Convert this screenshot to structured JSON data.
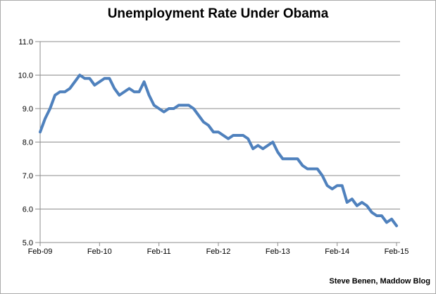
{
  "title": "Unemployment Rate Under Obama",
  "attribution": "Steve Benen, Maddow Blog",
  "colors": {
    "line": "#4F81BD",
    "gridline": "#8C8C8C",
    "axis": "#8C8C8C",
    "text": "#000000",
    "frame_border": "#ABABAB",
    "background": "#FFFFFF"
  },
  "chart_data": {
    "type": "line",
    "title": "Unemployment Rate Under Obama",
    "xlabel": "",
    "ylabel": "",
    "ylim": [
      5.0,
      11.0
    ],
    "y_tick_step": 1.0,
    "y_tick_labels": [
      "5.0",
      "6.0",
      "7.0",
      "8.0",
      "9.0",
      "10.0",
      "11.0"
    ],
    "x_tick_labels": [
      "Feb-09",
      "Feb-10",
      "Feb-11",
      "Feb-12",
      "Feb-13",
      "Feb-14",
      "Feb-15"
    ],
    "x_tick_month_indices": [
      0,
      12,
      24,
      36,
      48,
      60,
      72
    ],
    "grid": "horizontal",
    "legend": "none",
    "months": [
      "Feb-09",
      "Mar-09",
      "Apr-09",
      "May-09",
      "Jun-09",
      "Jul-09",
      "Aug-09",
      "Sep-09",
      "Oct-09",
      "Nov-09",
      "Dec-09",
      "Jan-10",
      "Feb-10",
      "Mar-10",
      "Apr-10",
      "May-10",
      "Jun-10",
      "Jul-10",
      "Aug-10",
      "Sep-10",
      "Oct-10",
      "Nov-10",
      "Dec-10",
      "Jan-11",
      "Feb-11",
      "Mar-11",
      "Apr-11",
      "May-11",
      "Jun-11",
      "Jul-11",
      "Aug-11",
      "Sep-11",
      "Oct-11",
      "Nov-11",
      "Dec-11",
      "Jan-12",
      "Feb-12",
      "Mar-12",
      "Apr-12",
      "May-12",
      "Jun-12",
      "Jul-12",
      "Aug-12",
      "Sep-12",
      "Oct-12",
      "Nov-12",
      "Dec-12",
      "Jan-13",
      "Feb-13",
      "Mar-13",
      "Apr-13",
      "May-13",
      "Jun-13",
      "Jul-13",
      "Aug-13",
      "Sep-13",
      "Oct-13",
      "Nov-13",
      "Dec-13",
      "Jan-14",
      "Feb-14",
      "Mar-14",
      "Apr-14",
      "May-14",
      "Jun-14",
      "Jul-14",
      "Aug-14",
      "Sep-14",
      "Oct-14",
      "Nov-14",
      "Dec-14",
      "Jan-15",
      "Feb-15"
    ],
    "series": [
      {
        "name": "Unemployment rate (%)",
        "values": [
          8.3,
          8.7,
          9.0,
          9.4,
          9.5,
          9.5,
          9.6,
          9.8,
          10.0,
          9.9,
          9.9,
          9.7,
          9.8,
          9.9,
          9.9,
          9.6,
          9.4,
          9.5,
          9.6,
          9.5,
          9.5,
          9.8,
          9.4,
          9.1,
          9.0,
          8.9,
          9.0,
          9.0,
          9.1,
          9.1,
          9.1,
          9.0,
          8.8,
          8.6,
          8.5,
          8.3,
          8.3,
          8.2,
          8.1,
          8.2,
          8.2,
          8.2,
          8.1,
          7.8,
          7.9,
          7.8,
          7.9,
          8.0,
          7.7,
          7.5,
          7.5,
          7.5,
          7.5,
          7.3,
          7.2,
          7.2,
          7.2,
          7.0,
          6.7,
          6.6,
          6.7,
          6.7,
          6.2,
          6.3,
          6.1,
          6.2,
          6.1,
          5.9,
          5.8,
          5.8,
          5.6,
          5.7,
          5.5
        ]
      }
    ]
  }
}
